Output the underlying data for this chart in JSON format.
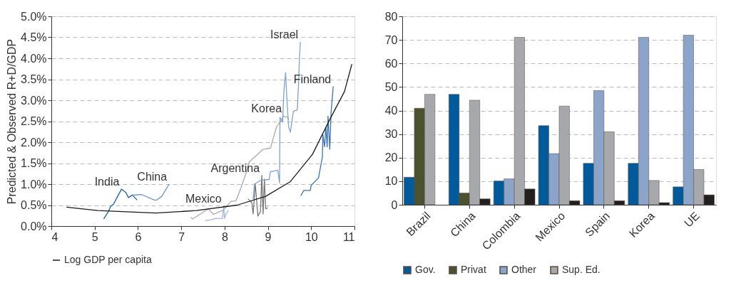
{
  "chart_data": [
    {
      "type": "line",
      "ylabel": "Predicted & Observed R+D/GDP",
      "xlim": [
        4,
        11
      ],
      "xticks": [
        4,
        5,
        6,
        7,
        8,
        9,
        10,
        11
      ],
      "ylim": [
        0,
        5
      ],
      "yticks": [
        {
          "value": 0,
          "label": "0.0%"
        },
        {
          "value": 0.5,
          "label": "0.5%"
        },
        {
          "value": 1,
          "label": "1.0%"
        },
        {
          "value": 1.5,
          "label": "1.5%"
        },
        {
          "value": 2,
          "label": "2.0%"
        },
        {
          "value": 2.5,
          "label": "2.5%"
        },
        {
          "value": 3,
          "label": "3.0%"
        },
        {
          "value": 3.5,
          "label": "3.5%"
        },
        {
          "value": 4,
          "label": "4.0%"
        },
        {
          "value": 4.5,
          "label": "4.5%"
        },
        {
          "value": 5,
          "label": "5.0%"
        }
      ],
      "grid": "y",
      "legend": "bottom",
      "series": [
        {
          "name": "India",
          "color": "#1f5f9c",
          "x": [
            5.21,
            5.32,
            5.37,
            5.44,
            5.5,
            5.62,
            5.72,
            5.78,
            5.87,
            5.98
          ],
          "values": [
            0.17,
            0.35,
            0.47,
            0.53,
            0.65,
            0.88,
            0.8,
            0.68,
            0.74,
            0.62
          ]
        },
        {
          "name": "China",
          "color": "#6d93c8",
          "x": [
            5.87,
            6.09,
            6.38,
            6.43,
            6.55,
            6.72
          ],
          "values": [
            0.74,
            0.75,
            0.62,
            0.62,
            0.71,
            1.0
          ]
        },
        {
          "name": "Korea",
          "color": "#aaaaaa",
          "x": [
            7.22,
            7.26,
            7.63,
            7.74,
            7.97,
            8.15,
            8.26,
            8.35,
            8.49,
            8.57,
            8.89,
            9.06,
            9.2,
            9.37,
            9.46,
            9.48
          ],
          "values": [
            0.21,
            0.17,
            0.41,
            0.28,
            0.38,
            0.59,
            0.6,
            0.83,
            1.24,
            1.53,
            1.83,
            1.86,
            2.36,
            2.62,
            2.59,
            2.54
          ]
        },
        {
          "name": "Mexico",
          "color": "#9fb7e0",
          "x": [
            7.55,
            7.69,
            7.78,
            7.95,
            7.98,
            8.0,
            8.03,
            8.09
          ],
          "values": [
            0.13,
            0.15,
            0.18,
            0.18,
            0.48,
            0.18,
            0.29,
            0.38
          ]
        },
        {
          "name": "Argentina",
          "color": "#777777",
          "x": [
            8.54,
            8.63,
            8.66,
            8.71,
            8.77,
            8.83,
            8.86,
            8.89,
            8.92,
            8.95,
            9.0
          ],
          "values": [
            0.65,
            0.56,
            0.29,
            1.0,
            0.24,
            0.35,
            1.21,
            0.29,
            1.12,
            0.41,
            0.44
          ]
        },
        {
          "name": "Israel",
          "color": "#7ea1d6",
          "x": [
            8.66,
            8.69,
            8.83,
            9.03,
            9.06,
            9.23,
            9.27,
            9.28,
            9.34,
            9.37,
            9.41,
            9.44,
            9.48,
            9.52,
            9.59,
            9.68,
            9.71,
            9.73,
            9.75
          ],
          "values": [
            0.65,
            1.0,
            1.09,
            1.11,
            1.3,
            1.33,
            1.03,
            2.59,
            2.48,
            3.21,
            3.66,
            3.01,
            2.36,
            2.24,
            2.74,
            2.77,
            3.42,
            4.01,
            4.39
          ]
        },
        {
          "name": "Finland",
          "color": "#3a74b8",
          "x": [
            9.76,
            9.83,
            9.98,
            10.0,
            10.17,
            10.26,
            10.27,
            10.31,
            10.34,
            10.37,
            10.39,
            10.43,
            10.46,
            10.51
          ],
          "values": [
            0.72,
            0.85,
            0.85,
            0.97,
            1.15,
            1.65,
            2.18,
            1.89,
            2.36,
            1.89,
            2.62,
            1.83,
            2.71,
            3.33
          ]
        },
        {
          "name": "Log GDP per capita",
          "type": "line",
          "color": "#1a1a1a",
          "x": [
            4.35,
            5.07,
            6.41,
            7.35,
            8.29,
            8.95,
            9.52,
            10.03,
            10.43,
            10.77,
            10.94
          ],
          "values": [
            0.45,
            0.37,
            0.31,
            0.37,
            0.5,
            0.71,
            1.06,
            1.71,
            2.54,
            3.21,
            3.86
          ]
        }
      ]
    },
    {
      "type": "bar",
      "categories": [
        "Brazil",
        "China",
        "Colombia",
        "Mexico",
        "Spain",
        "Korea",
        "UE"
      ],
      "ylim": [
        0,
        80
      ],
      "yticks": [
        0,
        10,
        20,
        30,
        40,
        50,
        60,
        70,
        80
      ],
      "grid": "y",
      "legend": "bottom",
      "series": [
        {
          "name": "Gov.",
          "color": "#005a9c",
          "values": [
            11.7,
            46.9,
            10.1,
            33.6,
            17.6,
            17.6,
            7.6
          ]
        },
        {
          "name": "Privat",
          "color": "#4b5230",
          "values": [
            41,
            5,
            null,
            null,
            null,
            null,
            null
          ]
        },
        {
          "name": "Other",
          "color": "#8aa4ca",
          "values": [
            null,
            null,
            11,
            21.7,
            48.5,
            71.1,
            72
          ]
        },
        {
          "name": "Sup. Ed.",
          "color": "#a7a8ab",
          "values": [
            46.9,
            44.4,
            71.1,
            41.9,
            31,
            10.3,
            15
          ]
        },
        {
          "color": "#231f20",
          "values": [
            null,
            2.5,
            6.7,
            1.7,
            1.7,
            0.9,
            4.2
          ]
        }
      ]
    }
  ]
}
